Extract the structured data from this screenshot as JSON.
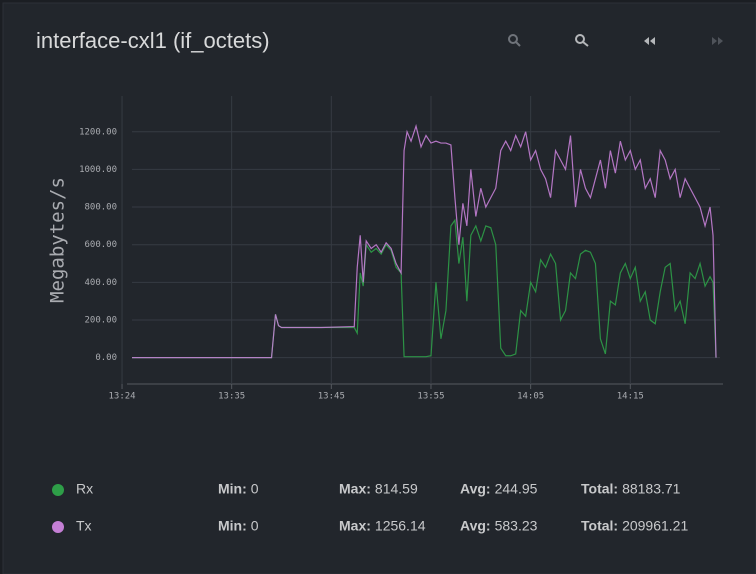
{
  "chart_data": {
    "type": "line",
    "title": "interface-cxl1 (if_octets)",
    "y_label": "Megabytes/s",
    "grid": true,
    "xlim": [
      805,
      864
    ],
    "xticks": [
      {
        "value": 804,
        "label": "13:24"
      },
      {
        "value": 815,
        "label": "13:35"
      },
      {
        "value": 825,
        "label": "13:45"
      },
      {
        "value": 835,
        "label": "13:55"
      },
      {
        "value": 845,
        "label": "14:05"
      },
      {
        "value": 855,
        "label": "14:15"
      }
    ],
    "ylim": [
      -140,
      1390
    ],
    "yticks": [
      {
        "value": 0,
        "label": "0.00"
      },
      {
        "value": 200,
        "label": "200.00"
      },
      {
        "value": 400,
        "label": "400.00"
      },
      {
        "value": 600,
        "label": "600.00"
      },
      {
        "value": 800,
        "label": "800.00"
      },
      {
        "value": 1000,
        "label": "1000.00"
      },
      {
        "value": 1200,
        "label": "1200.00"
      }
    ],
    "x": [
      805,
      819,
      819.4,
      819.7,
      820,
      824,
      827.3,
      827.6,
      827.9,
      828.2,
      828.5,
      829,
      829.5,
      830,
      830.5,
      831,
      831.5,
      832,
      832.3,
      832.6,
      833,
      833.5,
      834,
      834.5,
      835,
      835.5,
      836,
      836.5,
      837,
      837.4,
      837.8,
      838.2,
      838.6,
      839,
      839.5,
      840,
      840.5,
      841,
      841.5,
      842,
      842.5,
      843,
      843.5,
      844,
      844.5,
      845,
      845.5,
      846,
      846.5,
      847,
      847.5,
      848,
      848.5,
      849,
      849.5,
      850,
      850.5,
      851,
      851.5,
      852,
      852.5,
      853,
      853.5,
      854,
      854.5,
      855,
      855.5,
      856,
      856.5,
      857,
      857.5,
      858,
      858.5,
      859,
      859.5,
      860,
      860.5,
      861,
      861.5,
      862,
      862.5,
      863,
      863.3,
      863.6
    ],
    "stat_labels": [
      "Min:",
      "Max:",
      "Avg:",
      "Total:"
    ],
    "series": [
      {
        "name": "Rx",
        "color": "#2e9e48",
        "stats": [
          0,
          814.59,
          244.95,
          88183.71
        ],
        "values": [
          0,
          0,
          230,
          170,
          160,
          160,
          160,
          130,
          450,
          380,
          600,
          560,
          580,
          550,
          600,
          570,
          480,
          450,
          5,
          5,
          5,
          5,
          5,
          5,
          10,
          400,
          100,
          250,
          700,
          730,
          500,
          640,
          300,
          650,
          700,
          620,
          700,
          690,
          600,
          50,
          10,
          10,
          20,
          250,
          220,
          400,
          350,
          520,
          480,
          550,
          500,
          200,
          250,
          450,
          420,
          550,
          570,
          560,
          500,
          100,
          20,
          300,
          280,
          450,
          500,
          420,
          480,
          300,
          350,
          200,
          180,
          350,
          480,
          500,
          250,
          300,
          180,
          450,
          420,
          500,
          380,
          430,
          400,
          0
        ]
      },
      {
        "name": "Tx",
        "color": "#c47fd5",
        "stats": [
          0,
          1256.14,
          583.23,
          209961.21
        ],
        "values": [
          0,
          0,
          230,
          170,
          160,
          160,
          165,
          480,
          650,
          400,
          620,
          580,
          600,
          560,
          610,
          580,
          500,
          450,
          1100,
          1200,
          1150,
          1230,
          1120,
          1180,
          1140,
          1150,
          1140,
          1140,
          1130,
          850,
          600,
          820,
          700,
          1000,
          750,
          900,
          800,
          850,
          900,
          1100,
          1150,
          1100,
          1180,
          1120,
          1200,
          1050,
          1100,
          1000,
          950,
          850,
          1100,
          1050,
          1000,
          1180,
          800,
          1000,
          900,
          850,
          950,
          1050,
          900,
          1100,
          980,
          1150,
          1050,
          1100,
          1000,
          1050,
          900,
          950,
          850,
          1100,
          1050,
          950,
          1000,
          850,
          950,
          900,
          850,
          800,
          700,
          800,
          650,
          0
        ]
      }
    ]
  }
}
